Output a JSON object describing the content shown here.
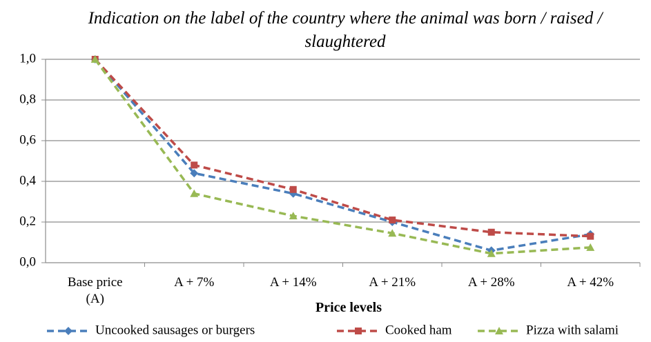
{
  "chart_data": {
    "type": "line",
    "title": "Indication on the label of the country where the animal was born / raised / slaughtered",
    "x_label": "Price levels",
    "categories": [
      "Base price (A)",
      "A + 7%",
      "A + 14%",
      "A + 21%",
      "A + 28%",
      "A + 42%"
    ],
    "series": [
      {
        "name": "Uncooked sausages or burgers",
        "color": "#4a7ebb",
        "values": [
          1.0,
          0.44,
          0.34,
          0.2,
          0.06,
          0.14
        ]
      },
      {
        "name": "Cooked ham",
        "color": "#be4b48",
        "values": [
          1.0,
          0.48,
          0.36,
          0.21,
          0.15,
          0.13
        ]
      },
      {
        "name": "Pizza with salami",
        "color": "#98b954",
        "values": [
          1.0,
          0.34,
          0.23,
          0.145,
          0.045,
          0.075
        ]
      }
    ],
    "ylim": [
      0,
      1
    ],
    "yticks": [
      {
        "value": 0,
        "label": "0,0"
      },
      {
        "value": 0.2,
        "label": "0,2"
      },
      {
        "value": 0.4,
        "label": "0,4"
      },
      {
        "value": 0.6,
        "label": "0,6"
      },
      {
        "value": 0.8,
        "label": "0,8"
      },
      {
        "value": 1,
        "label": "1,0"
      }
    ],
    "grid": true,
    "legend": "bottom"
  }
}
